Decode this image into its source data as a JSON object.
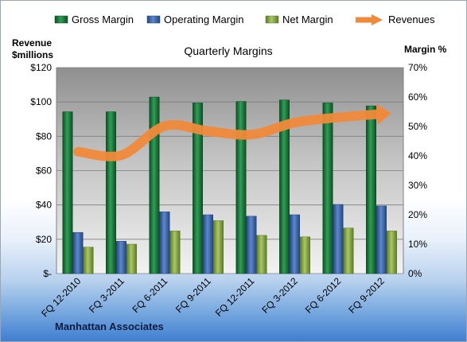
{
  "chart_data": {
    "type": "bar",
    "title": "Quarterly Margins",
    "ylabel_left_line1": "Revenue",
    "ylabel_left_line2": "$millions",
    "ylabel_right": "Margin %",
    "categories": [
      "FQ 12-2010",
      "FQ 3-2011",
      "FQ 6-2011",
      "FQ 9-2011",
      "FQ 12-2011",
      "FQ 3-2012",
      "FQ 6-2012",
      "FQ 9-2012"
    ],
    "series": [
      {
        "name": "Gross Margin",
        "axis": "right",
        "type": "bar",
        "color": "#1f7a3c",
        "values": [
          55,
          55,
          60,
          58,
          58.5,
          59,
          58,
          57
        ]
      },
      {
        "name": "Operating Margin",
        "axis": "right",
        "type": "bar",
        "color": "#3f6db5",
        "values": [
          14,
          11,
          21,
          20,
          19.5,
          20,
          23.5,
          23
        ]
      },
      {
        "name": "Net Margin",
        "axis": "right",
        "type": "bar",
        "color": "#8fb04a",
        "values": [
          9,
          10,
          14.5,
          18,
          13,
          12.5,
          15.5,
          14.5
        ]
      },
      {
        "name": "Revenues",
        "axis": "left",
        "type": "line",
        "color": "#f08a3a",
        "values": [
          71,
          69,
          86,
          83,
          81,
          88,
          91,
          93
        ]
      }
    ],
    "left_axis": {
      "min": 0,
      "max": 120,
      "ticks": [
        "$-",
        "$20",
        "$40",
        "$60",
        "$80",
        "$100",
        "$120"
      ]
    },
    "right_axis": {
      "min": 0,
      "max": 70,
      "ticks": [
        "0%",
        "10%",
        "20%",
        "30%",
        "40%",
        "50%",
        "60%",
        "70%"
      ]
    },
    "grid": true,
    "legend_position": "top"
  },
  "footer": {
    "company": "Manhattan Associates"
  }
}
